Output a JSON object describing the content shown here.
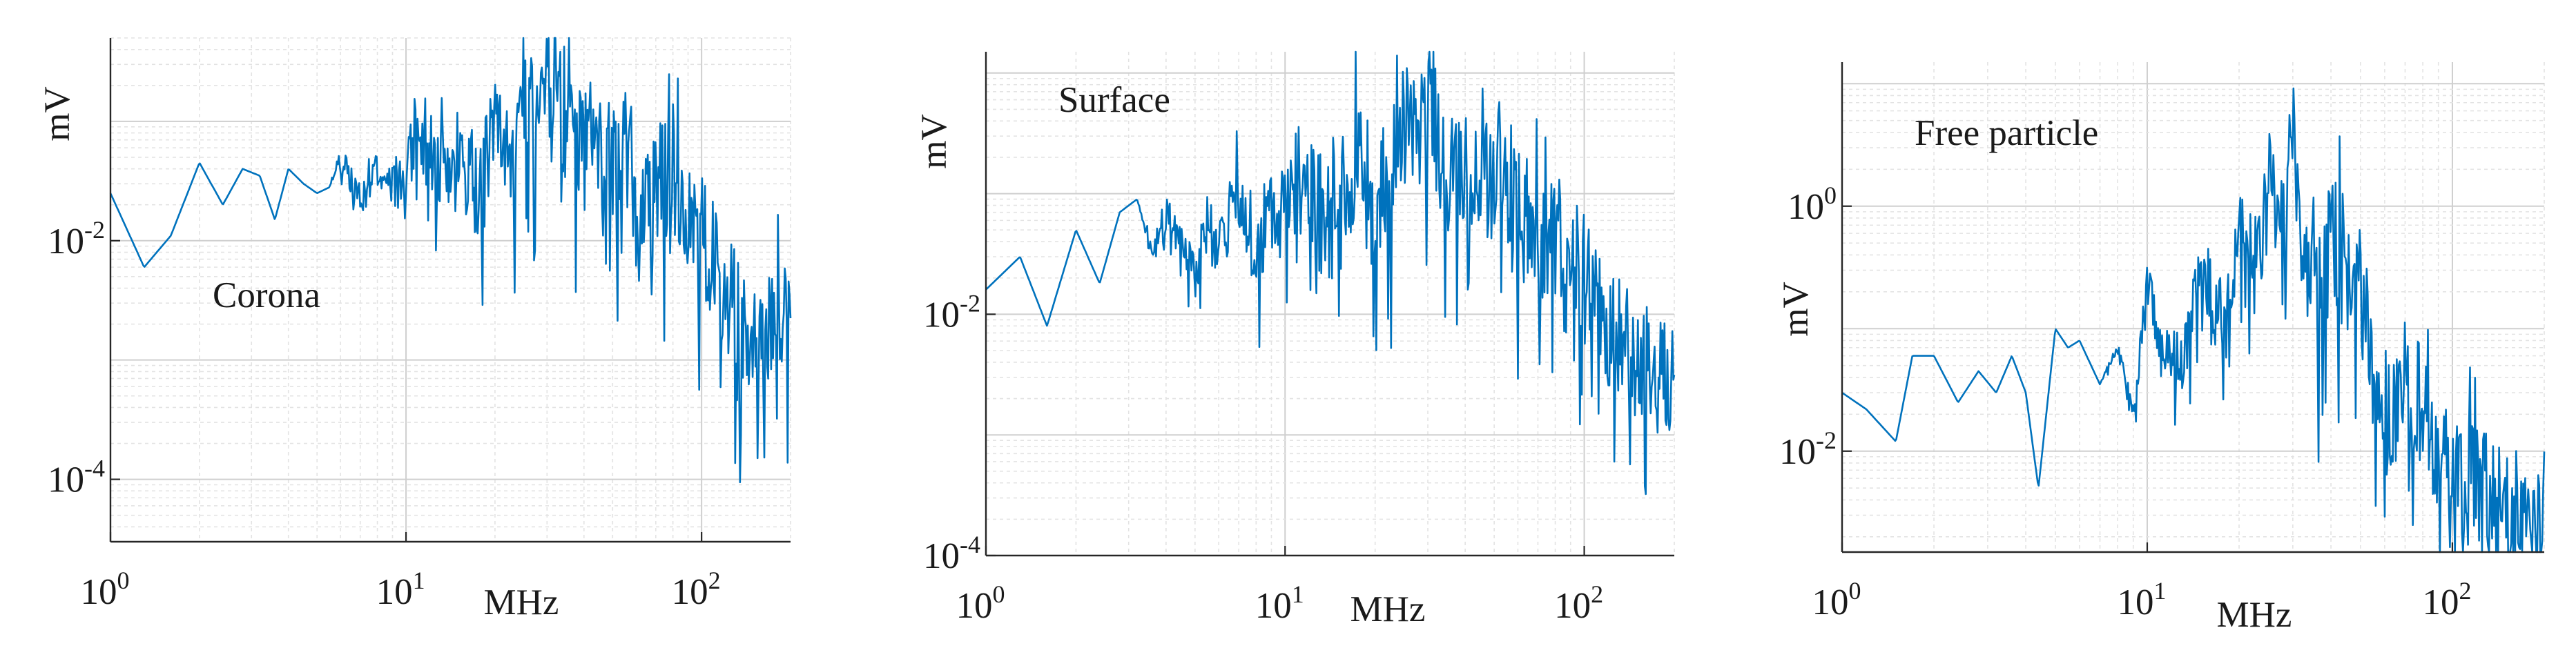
{
  "chart_data": [
    {
      "type": "line",
      "title": "",
      "annotation": "Corona",
      "xlabel": "MHz",
      "ylabel": "mV",
      "xscale": "log",
      "yscale": "log",
      "xlim": [
        1,
        200
      ],
      "ylim": [
        3e-05,
        0.5
      ],
      "grid": true,
      "xticks": [
        {
          "value": 1,
          "base": "10",
          "exp": "0"
        },
        {
          "value": 10,
          "base": "10",
          "exp": "1"
        },
        {
          "value": 100,
          "base": "10",
          "exp": "2"
        }
      ],
      "yticks": [
        {
          "value": 0.01,
          "base": "10",
          "exp": "-2"
        },
        {
          "value": 0.0001,
          "base": "10",
          "exp": "-4"
        }
      ],
      "series": [
        {
          "name": "Corona",
          "color": "#0072BD",
          "x": [
            1,
            1.3,
            1.6,
            2,
            2.4,
            2.8,
            3.2,
            3.6,
            4,
            4.5,
            5,
            5.5,
            6,
            7,
            8,
            9,
            10,
            11,
            13,
            15,
            18,
            20,
            23,
            25,
            28,
            30,
            33,
            36,
            40,
            45,
            50,
            55,
            60,
            70,
            80,
            90,
            100,
            110,
            130,
            150,
            170,
            200
          ],
          "y": [
            0.025,
            0.006,
            0.011,
            0.045,
            0.02,
            0.04,
            0.035,
            0.015,
            0.04,
            0.03,
            0.025,
            0.028,
            0.05,
            0.022,
            0.04,
            0.03,
            0.035,
            0.09,
            0.04,
            0.05,
            0.025,
            0.12,
            0.06,
            0.2,
            0.1,
            0.35,
            0.15,
            0.09,
            0.05,
            0.08,
            0.04,
            0.06,
            0.03,
            0.025,
            0.04,
            0.015,
            0.01,
            0.006,
            0.003,
            0.0015,
            0.002,
            0.003
          ],
          "noise": [
            0,
            0,
            0,
            0,
            0,
            0,
            0,
            0,
            0,
            0,
            0,
            0,
            0.35,
            0.5,
            0.65,
            0.8,
            0.95,
            1.1,
            1.25,
            1.4,
            1.55,
            1.7,
            1.85,
            2,
            2,
            2,
            2,
            2,
            2,
            2,
            2,
            2,
            2,
            2,
            2,
            2,
            2,
            2,
            2,
            2,
            2,
            2
          ]
        }
      ]
    },
    {
      "type": "line",
      "title": "",
      "annotation": "Surface",
      "xlabel": "MHz",
      "ylabel": "mV",
      "xscale": "log",
      "yscale": "log",
      "xlim": [
        1,
        200
      ],
      "ylim": [
        0.0001,
        1.5
      ],
      "grid": true,
      "xticks": [
        {
          "value": 1,
          "base": "10",
          "exp": "0"
        },
        {
          "value": 10,
          "base": "10",
          "exp": "1"
        },
        {
          "value": 100,
          "base": "10",
          "exp": "2"
        }
      ],
      "yticks": [
        {
          "value": 0.01,
          "base": "10",
          "exp": "-2"
        },
        {
          "value": 0.0001,
          "base": "10",
          "exp": "-4"
        }
      ],
      "series": [
        {
          "name": "Surface",
          "color": "#0072BD",
          "x": [
            1,
            1.3,
            1.6,
            2,
            2.4,
            2.8,
            3.2,
            3.6,
            4,
            4.5,
            5,
            5.5,
            6,
            7,
            8,
            9,
            10,
            11,
            13,
            15,
            18,
            20,
            23,
            25,
            28,
            30,
            33,
            36,
            40,
            45,
            50,
            55,
            60,
            70,
            80,
            90,
            100,
            110,
            130,
            150,
            170,
            200
          ],
          "y": [
            0.016,
            0.03,
            0.008,
            0.05,
            0.018,
            0.07,
            0.09,
            0.03,
            0.08,
            0.04,
            0.02,
            0.06,
            0.03,
            0.1,
            0.04,
            0.08,
            0.05,
            0.12,
            0.06,
            0.1,
            0.25,
            0.08,
            0.15,
            0.4,
            0.2,
            0.8,
            0.25,
            0.12,
            0.15,
            0.2,
            0.1,
            0.15,
            0.06,
            0.05,
            0.04,
            0.03,
            0.02,
            0.01,
            0.006,
            0.004,
            0.003,
            0.002
          ],
          "noise": [
            0,
            0,
            0,
            0,
            0,
            0,
            0,
            0.3,
            0.45,
            0.6,
            0.75,
            0.9,
            1.05,
            1.2,
            1.35,
            1.5,
            1.65,
            1.8,
            1.95,
            2,
            2,
            2,
            2,
            2,
            2,
            2,
            2,
            2,
            2,
            2,
            2,
            2,
            2,
            2,
            2,
            2,
            2,
            2,
            2,
            2,
            2,
            2
          ]
        }
      ]
    },
    {
      "type": "line",
      "title": "",
      "annotation": "Free particle",
      "xlabel": "MHz",
      "ylabel": "mV",
      "xscale": "log",
      "yscale": "log",
      "xlim": [
        1,
        200
      ],
      "ylim": [
        0.0015,
        15
      ],
      "grid": true,
      "xticks": [
        {
          "value": 1,
          "base": "10",
          "exp": "0"
        },
        {
          "value": 10,
          "base": "10",
          "exp": "1"
        },
        {
          "value": 100,
          "base": "10",
          "exp": "2"
        }
      ],
      "yticks": [
        {
          "value": 1,
          "base": "10",
          "exp": "0"
        },
        {
          "value": 0.01,
          "base": "10",
          "exp": "-2"
        }
      ],
      "series": [
        {
          "name": "Free particle",
          "color": "#0072BD",
          "x": [
            1,
            1.2,
            1.5,
            1.7,
            2,
            2.4,
            2.8,
            3.2,
            3.6,
            4,
            4.4,
            5,
            5.5,
            6,
            7,
            8,
            9,
            10,
            11,
            13,
            15,
            18,
            20,
            23,
            25,
            28,
            30,
            33,
            36,
            40,
            45,
            50,
            55,
            60,
            70,
            80,
            90,
            100,
            110,
            130,
            150,
            170,
            200
          ],
          "y": [
            0.03,
            0.022,
            0.012,
            0.06,
            0.06,
            0.025,
            0.045,
            0.03,
            0.06,
            0.03,
            0.005,
            0.1,
            0.07,
            0.08,
            0.035,
            0.07,
            0.02,
            0.25,
            0.08,
            0.05,
            0.35,
            0.09,
            0.6,
            0.3,
            1.5,
            0.5,
            3.5,
            0.4,
            0.15,
            0.6,
            0.3,
            0.2,
            0.05,
            0.02,
            0.04,
            0.02,
            0.012,
            0.008,
            0.006,
            0.005,
            0.004,
            0.003,
            0.003
          ],
          "noise": [
            0,
            0,
            0,
            0,
            0,
            0,
            0,
            0,
            0,
            0,
            0,
            0,
            0,
            0,
            0,
            0.3,
            0.45,
            0.6,
            0.75,
            0.9,
            1.05,
            1.2,
            1.35,
            1.5,
            1.65,
            1.8,
            1.95,
            2,
            2,
            2,
            2,
            2,
            2,
            2,
            2,
            2,
            2,
            2,
            2,
            2,
            2,
            2,
            2
          ]
        }
      ]
    }
  ]
}
